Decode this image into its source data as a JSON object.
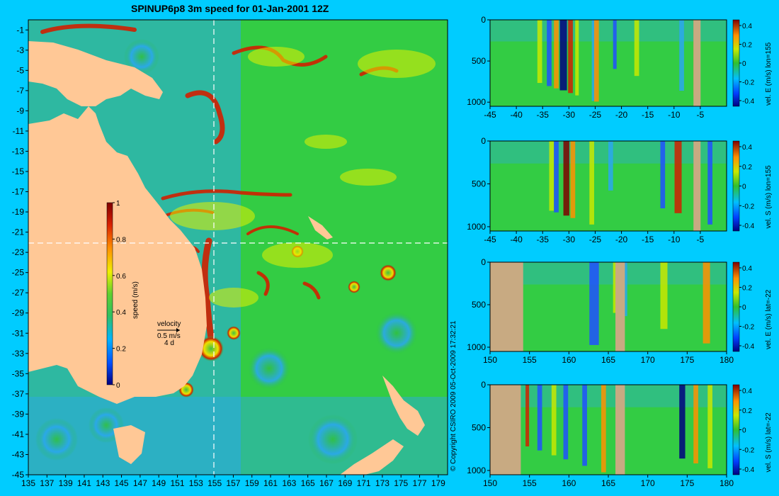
{
  "title": "SPINUP6p8 3m speed for 01-Jan-2001 12Z",
  "copyright": "© Copyright CSIRO 2009   05-Oct-2009 17:32:21",
  "colors": {
    "background": "#00ccff",
    "land_map": "#ffc896",
    "land_section": "#c8aa82",
    "ocean_mid": "#33cc33",
    "ocean_low": "#2aa7ee",
    "jet_high": "#d02000",
    "section_line": "#ffffff"
  },
  "chart_data": [
    {
      "type": "heatmap",
      "name": "map",
      "xlim": [
        135,
        180
      ],
      "ylim": [
        -45,
        0
      ],
      "x_ticks": [
        "135",
        "137",
        "139",
        "141",
        "143",
        "145",
        "147",
        "149",
        "151",
        "153",
        "155",
        "157",
        "159",
        "161",
        "163",
        "165",
        "167",
        "169",
        "171",
        "173",
        "175",
        "177",
        "179"
      ],
      "y_ticks": [
        "-1",
        "-3",
        "-5",
        "-7",
        "-9",
        "-11",
        "-13",
        "-15",
        "-17",
        "-19",
        "-21",
        "-23",
        "-25",
        "-27",
        "-29",
        "-31",
        "-33",
        "-35",
        "-37",
        "-39",
        "-41",
        "-43",
        "-45"
      ],
      "section_lon": 155,
      "section_lat": -22,
      "colorbar": {
        "label": "speed (m/s)",
        "ticks": [
          "1",
          "0.8",
          "0.6",
          "0.4",
          "0.2",
          "0"
        ],
        "range": [
          0,
          1
        ]
      },
      "velocity_key": {
        "label": "velocity",
        "speed": "0.5 m/s",
        "days": "4 d"
      }
    },
    {
      "type": "heatmap",
      "name": "vel-E-lon155",
      "x_ticks": [
        "-45",
        "-40",
        "-35",
        "-30",
        "-25",
        "-20",
        "-15",
        "-10",
        "-5"
      ],
      "xlim": [
        -45,
        0
      ],
      "y_ticks": [
        "0",
        "500",
        "1000"
      ],
      "ylim": [
        0,
        1050
      ],
      "colorbar_label": "vel. E (m/s) lon=155",
      "colorbar_ticks": [
        "0.4",
        "0.2",
        "0",
        "-0.2",
        "-0.4"
      ]
    },
    {
      "type": "heatmap",
      "name": "vel-S-lon155",
      "x_ticks": [
        "-45",
        "-40",
        "-35",
        "-30",
        "-25",
        "-20",
        "-15",
        "-10",
        "-5"
      ],
      "xlim": [
        -45,
        0
      ],
      "y_ticks": [
        "0",
        "500",
        "1000"
      ],
      "ylim": [
        0,
        1050
      ],
      "colorbar_label": "vel. S (m/s) lon=155",
      "colorbar_ticks": [
        "0.4",
        "0.2",
        "0",
        "-0.2",
        "-0.4"
      ]
    },
    {
      "type": "heatmap",
      "name": "vel-E-lat-22",
      "x_ticks": [
        "150",
        "155",
        "160",
        "165",
        "170",
        "175",
        "180"
      ],
      "xlim": [
        150,
        180
      ],
      "y_ticks": [
        "0",
        "500",
        "1000"
      ],
      "ylim": [
        0,
        1050
      ],
      "colorbar_label": "vel. E (m/s) lat=-22",
      "colorbar_ticks": [
        "0.4",
        "0.2",
        "0",
        "-0.2",
        "-0.4"
      ]
    },
    {
      "type": "heatmap",
      "name": "vel-S-lat-22",
      "x_ticks": [
        "150",
        "155",
        "160",
        "165",
        "170",
        "175",
        "180"
      ],
      "xlim": [
        150,
        180
      ],
      "y_ticks": [
        "0",
        "500",
        "1000"
      ],
      "ylim": [
        0,
        1050
      ],
      "colorbar_label": "vel. S (m/s) lat=-22",
      "colorbar_ticks": [
        "0.4",
        "0.2",
        "0",
        "-0.2",
        "-0.4"
      ]
    }
  ]
}
